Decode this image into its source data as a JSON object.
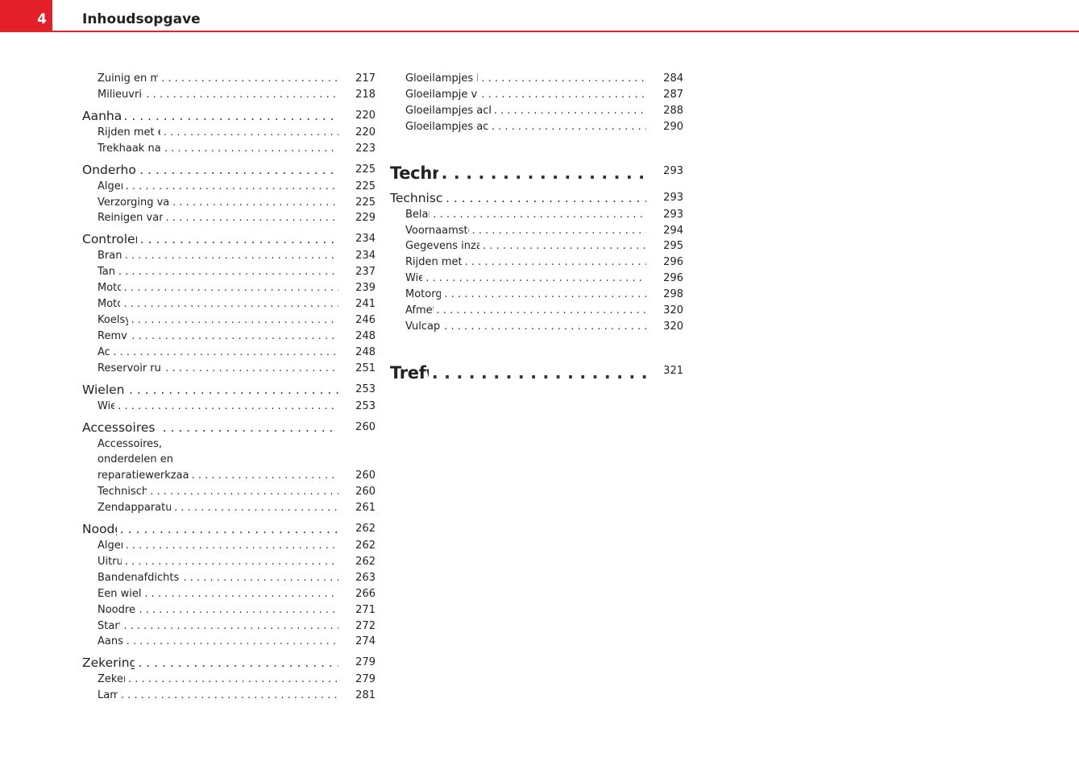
{
  "header": {
    "page_number": "4",
    "title": "Inhoudsopgave",
    "accent_color": "#e3202a"
  },
  "left_column": [
    {
      "level": 2,
      "label": "Zuinig en milieubewust rijden",
      "page": "217"
    },
    {
      "level": 2,
      "label": "Milieuvriendelijkheid",
      "page": "218"
    },
    {
      "level": 1,
      "label": "Aanhangwagen",
      "page": "220"
    },
    {
      "level": 2,
      "label": "Rijden met een aanhangwagen",
      "page": "220"
    },
    {
      "level": 2,
      "label": "Trekhaak naderhand inbouwen*",
      "page": "223"
    },
    {
      "level": 1,
      "label": "Onderhoud en reiniging",
      "page": "225"
    },
    {
      "level": 2,
      "label": "Algemeen",
      "page": "225"
    },
    {
      "level": 2,
      "label": "Verzorging van de wagen, buitenzijde",
      "page": "225"
    },
    {
      "level": 2,
      "label": "Reinigen van het wageninterieur",
      "page": "229"
    },
    {
      "level": 1,
      "label": "Controleren en bijvullen",
      "page": "234"
    },
    {
      "level": 2,
      "label": "Brandstof",
      "page": "234"
    },
    {
      "level": 2,
      "label": "Tanken",
      "page": "237"
    },
    {
      "level": 2,
      "label": "Motorkap",
      "page": "239"
    },
    {
      "level": 2,
      "label": "Motorolie",
      "page": "241"
    },
    {
      "level": 2,
      "label": "Koelsysteem",
      "page": "246"
    },
    {
      "level": 2,
      "label": "Remvloeistof",
      "page": "248"
    },
    {
      "level": 2,
      "label": "Accu",
      "page": "248"
    },
    {
      "level": 2,
      "label": "Reservoir ruitensproeiervloeistof",
      "page": "251"
    },
    {
      "level": 1,
      "label": "Wielen en banden",
      "page": "253"
    },
    {
      "level": 2,
      "label": "Wielen",
      "page": "253"
    },
    {
      "level": 1,
      "label": "Accessoires en technische wijzigingen",
      "page": "260"
    },
    {
      "level": 2,
      "label": "Accessoires, onderdelen en reparatiewerkzaamheden",
      "page": "260",
      "wrap": true
    },
    {
      "level": 2,
      "label": "Technische wijzigingen",
      "page": "260"
    },
    {
      "level": 2,
      "label": "Zendapparatuur en kantoorapparatuur",
      "page": "261"
    },
    {
      "level": 1,
      "label": "Noodgevallen",
      "page": "262"
    },
    {
      "level": 2,
      "label": "Algemeen",
      "page": "262"
    },
    {
      "level": 2,
      "label": "Uitrusting",
      "page": "262"
    },
    {
      "level": 2,
      "label": "Bandenafdichtset TMS (Tyre Mobility System)*",
      "page": "263"
    },
    {
      "level": 2,
      "label": "Een wiel vervangen",
      "page": "266"
    },
    {
      "level": 2,
      "label": "Noodreservewiel",
      "page": "271"
    },
    {
      "level": 2,
      "label": "Starthulp",
      "page": "272"
    },
    {
      "level": 2,
      "label": "Aanslepen",
      "page": "274"
    },
    {
      "level": 1,
      "label": "Zekeringen en lampjes",
      "page": "279"
    },
    {
      "level": 2,
      "label": "Zekeringen",
      "page": "279"
    },
    {
      "level": 2,
      "label": "Lampen",
      "page": "281"
    }
  ],
  "right_column": [
    {
      "level": 2,
      "label": "Gloeilampjes in koplampen vervangen",
      "page": "284"
    },
    {
      "level": 2,
      "label": "Gloeilampje van mistlamp* vervangen",
      "page": "287"
    },
    {
      "level": 2,
      "label": "Gloeilampjes achteraan vervangen (in zijpaneel)",
      "page": "288"
    },
    {
      "level": 2,
      "label": "Gloeilampjes achter (in achterklep) vervangen",
      "page": "290"
    },
    {
      "level": 0,
      "label": "Technische gegevens",
      "page": "293"
    },
    {
      "level": 1,
      "label": "Technische kenmerken",
      "page": "293"
    },
    {
      "level": 2,
      "label": "Belangrijk",
      "page": "293"
    },
    {
      "level": 2,
      "label": "Voornaamste wagenkenmerken",
      "page": "294"
    },
    {
      "level": 2,
      "label": "Gegevens inzake het brandstofverbruik",
      "page": "295"
    },
    {
      "level": 2,
      "label": "Rijden met aanhangwagen",
      "page": "296"
    },
    {
      "level": 2,
      "label": "Wielen",
      "page": "296"
    },
    {
      "level": 2,
      "label": "Motorgegevens",
      "page": "298"
    },
    {
      "level": 2,
      "label": "Afmetingen",
      "page": "320"
    },
    {
      "level": 2,
      "label": "Vulcapaciteiten",
      "page": "320"
    },
    {
      "level": 0,
      "label": "Trefwoordenlijst",
      "page": "321"
    }
  ]
}
